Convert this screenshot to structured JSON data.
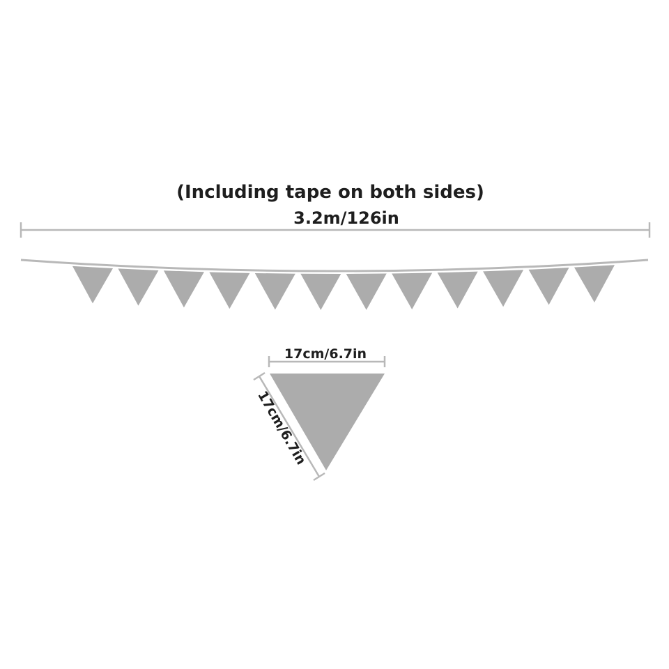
{
  "diagram": {
    "note": "(Including tape on both sides)",
    "total_length": "3.2m/126in",
    "flag_count": 12,
    "flag_width_label": "17cm/6.7in",
    "flag_side_label": "17cm/6.7in",
    "flag_color": "#acacac",
    "line_color": "#b8b8b8"
  }
}
